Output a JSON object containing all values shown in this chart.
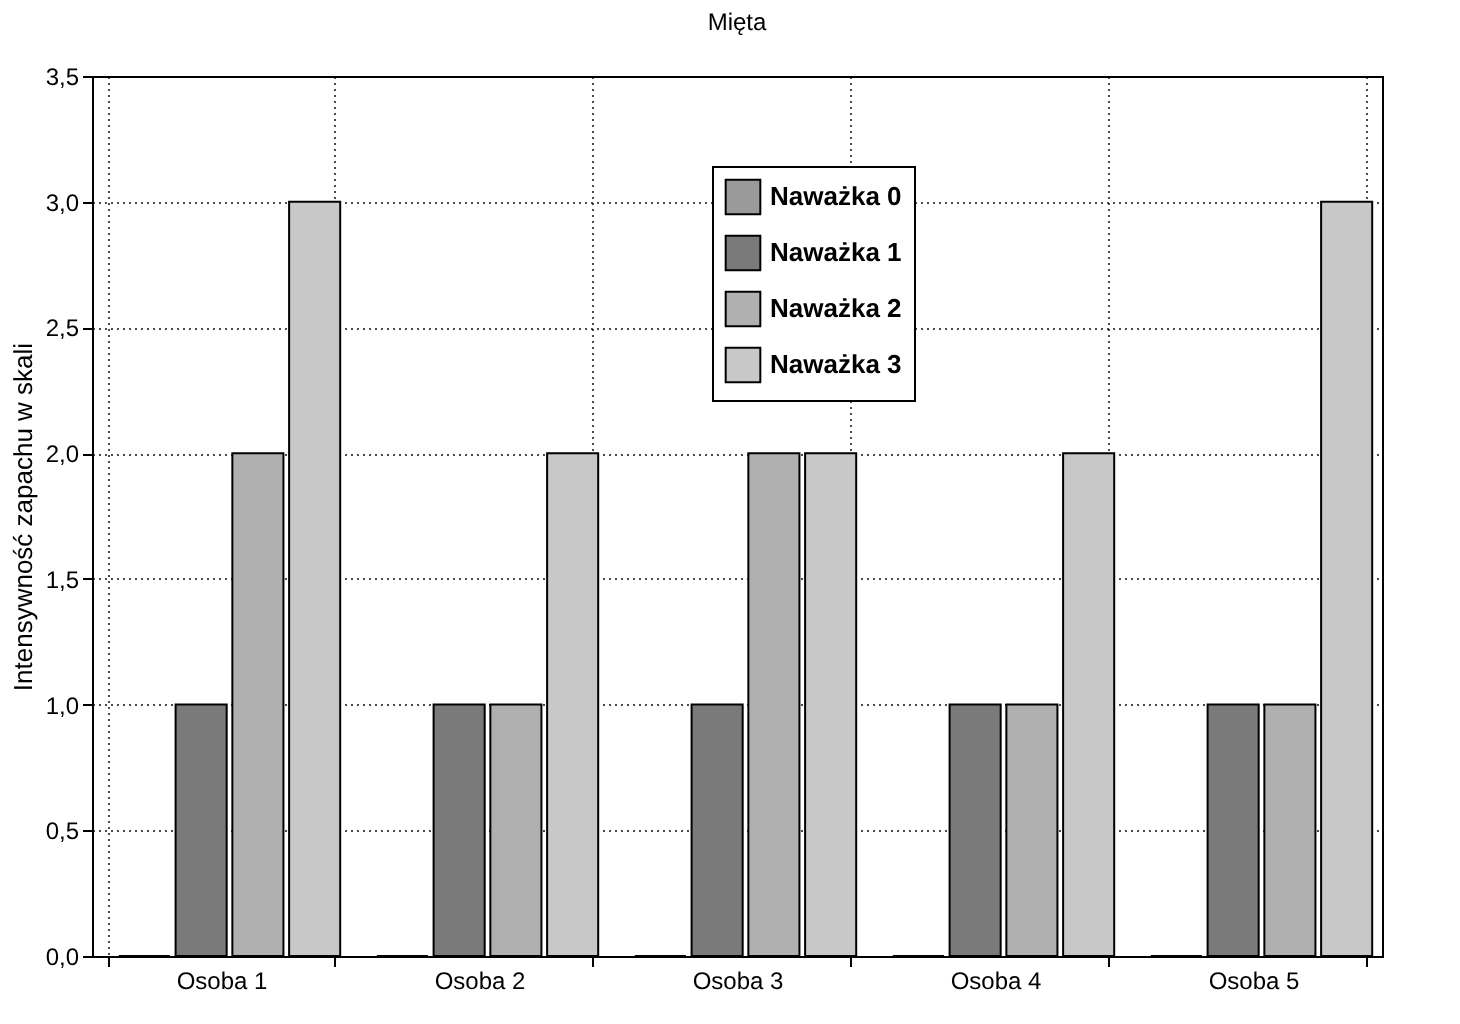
{
  "chart_data": {
    "type": "bar",
    "title": "Mięta",
    "ylabel": "Intensywność zapachu w skali",
    "categories": [
      "Osoba 1",
      "Osoba 2",
      "Osoba 3",
      "Osoba 4",
      "Osoba 5"
    ],
    "series": [
      {
        "name": "Naważka 0",
        "color": "#9a9a9a",
        "values": [
          0,
          0,
          0,
          0,
          0
        ]
      },
      {
        "name": "Naważka 1",
        "color": "#7a7a7a",
        "values": [
          1,
          1,
          1,
          1,
          1
        ]
      },
      {
        "name": "Naważka 2",
        "color": "#b0b0b0",
        "values": [
          2,
          1,
          2,
          1,
          1
        ]
      },
      {
        "name": "Naważka 3",
        "color": "#c8c8c8",
        "values": [
          3,
          2,
          2,
          2,
          3
        ]
      }
    ],
    "ylim": [
      0,
      3.5
    ],
    "yticks": [
      {
        "value": 0,
        "label": "0,0"
      },
      {
        "value": 0.5,
        "label": "0,5"
      },
      {
        "value": 1,
        "label": "1,0"
      },
      {
        "value": 1.5,
        "label": "1,5"
      },
      {
        "value": 2,
        "label": "2,0"
      },
      {
        "value": 2.5,
        "label": "2,5"
      },
      {
        "value": 3,
        "label": "3,0"
      },
      {
        "value": 3.5,
        "label": "3,5"
      }
    ],
    "grid": true,
    "legend": "top"
  }
}
